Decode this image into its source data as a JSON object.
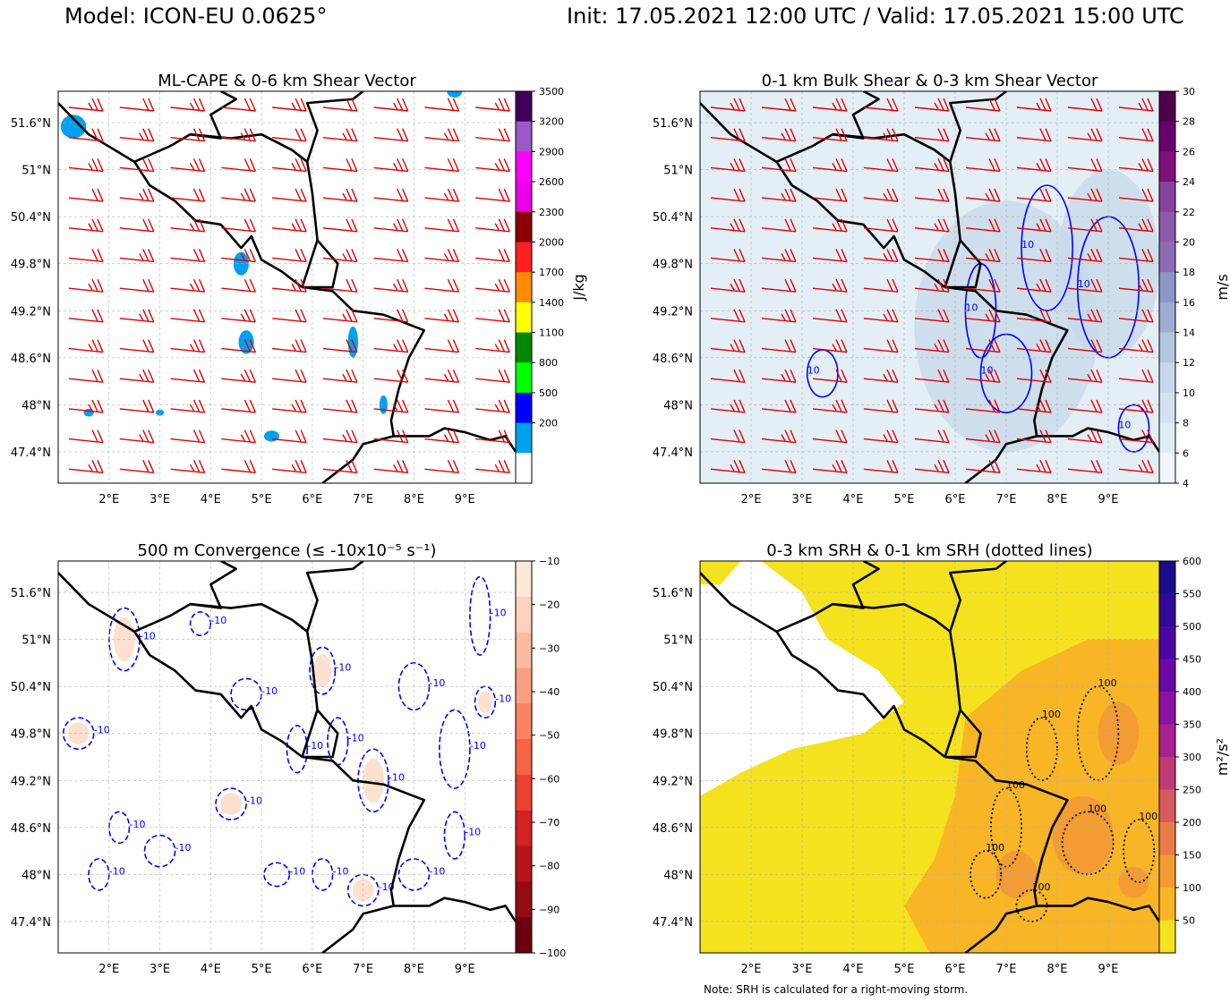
{
  "header": {
    "model": "Model: ICON-EU 0.0625°",
    "timing": "Init: 17.05.2021 12:00 UTC / Valid: 17.05.2021 15:00 UTC"
  },
  "note": "Note: SRH is calculated for a right-moving storm.",
  "colors": {
    "barb": "#e00000",
    "border": "#000000",
    "contour": "#0000ff",
    "grid": "#b0b0b0"
  },
  "chart_data": [
    {
      "type": "heatmap",
      "title": "ML-CAPE & 0-6 km Shear Vector",
      "xticks": [
        "2°E",
        "3°E",
        "4°E",
        "5°E",
        "6°E",
        "7°E",
        "8°E",
        "9°E"
      ],
      "yticks": [
        "51.6°N",
        "51°N",
        "50.4°N",
        "49.8°N",
        "49.2°N",
        "48.6°N",
        "48°N",
        "47.4°N"
      ],
      "xlim": [
        1.0,
        10.0
      ],
      "ylim": [
        47.0,
        52.0
      ],
      "colorbar": {
        "label": "J/kg",
        "ticks": [
          "3500",
          "3200",
          "2900",
          "2600",
          "2300",
          "2000",
          "1700",
          "1400",
          "1100",
          "800",
          "500",
          "200"
        ],
        "colors": [
          "#42005a",
          "#9b59c8",
          "#ff00ff",
          "#e800e8",
          "#8b0000",
          "#ff2020",
          "#ff8c00",
          "#ffff00",
          "#008800",
          "#00ff00",
          "#0000ff",
          "#00a0f0",
          "#ffffff"
        ]
      },
      "fill": "none",
      "overlay": "barbs",
      "barb_rows": 13,
      "barb_cols": 9
    },
    {
      "type": "heatmap",
      "title": "0-1 km Bulk Shear & 0-3 km Shear Vector",
      "xticks": [
        "2°E",
        "3°E",
        "4°E",
        "5°E",
        "6°E",
        "7°E",
        "8°E",
        "9°E"
      ],
      "yticks": [
        "51.6°N",
        "51°N",
        "50.4°N",
        "49.8°N",
        "49.2°N",
        "48.6°N",
        "48°N",
        "47.4°N"
      ],
      "xlim": [
        1.0,
        10.0
      ],
      "ylim": [
        47.0,
        52.0
      ],
      "colorbar": {
        "label": "m/s",
        "ticks": [
          "30",
          "28",
          "26",
          "24",
          "22",
          "20",
          "18",
          "16",
          "14",
          "12",
          "10",
          "8",
          "6",
          "4"
        ],
        "colors": [
          "#4d004b",
          "#67016e",
          "#810f7c",
          "#88419d",
          "#8c5aa8",
          "#8c6bb1",
          "#8c96c6",
          "#9fabd1",
          "#b3c6df",
          "#c6d8ea",
          "#d4e2f0",
          "#e0ecf4",
          "#f0f6fb"
        ]
      },
      "fill": "light-blue",
      "overlay": "barbs",
      "contour_label": "10",
      "barb_rows": 13,
      "barb_cols": 9
    },
    {
      "type": "heatmap",
      "title": "500 m Convergence (≤ -10x10⁻⁵ s⁻¹)",
      "xticks": [
        "2°E",
        "3°E",
        "4°E",
        "5°E",
        "6°E",
        "7°E",
        "8°E",
        "9°E"
      ],
      "yticks": [
        "51.6°N",
        "51°N",
        "50.4°N",
        "49.8°N",
        "49.2°N",
        "48.6°N",
        "48°N",
        "47.4°N"
      ],
      "xlim": [
        1.0,
        10.0
      ],
      "ylim": [
        47.0,
        52.0
      ],
      "colorbar": {
        "label": "",
        "ticks": [
          "−10",
          "−20",
          "−30",
          "−40",
          "−50",
          "−60",
          "−70",
          "−80",
          "−90",
          "−100"
        ],
        "colors": [
          "#fee8d8",
          "#fdd2bc",
          "#fcbba0",
          "#fc9f80",
          "#fb8262",
          "#f66446",
          "#ea4331",
          "#d42121",
          "#b81418",
          "#960b12",
          "#6d0010"
        ]
      },
      "fill": "none",
      "overlay": "contours",
      "contour_label": "-10"
    },
    {
      "type": "heatmap",
      "title": "0-3 km SRH & 0-1 km SRH (dotted lines)",
      "xticks": [
        "2°E",
        "3°E",
        "4°E",
        "5°E",
        "6°E",
        "7°E",
        "8°E",
        "9°E"
      ],
      "yticks": [
        "51.6°N",
        "51°N",
        "50.4°N",
        "49.8°N",
        "49.2°N",
        "48.6°N",
        "48°N",
        "47.4°N"
      ],
      "xlim": [
        1.0,
        10.0
      ],
      "ylim": [
        47.0,
        52.0
      ],
      "colorbar": {
        "label": "m²/s²",
        "ticks": [
          "600",
          "550",
          "500",
          "450",
          "400",
          "350",
          "300",
          "250",
          "200",
          "150",
          "100",
          "50"
        ],
        "colors": [
          "#1a0d8c",
          "#30089a",
          "#4a06a4",
          "#6a08a8",
          "#8a12a4",
          "#a52290",
          "#c03a78",
          "#d65a60",
          "#e87b48",
          "#f29c33",
          "#f8b526",
          "#f5e21e"
        ]
      },
      "fill": "yellow",
      "overlay": "dotted",
      "contour_label": "100"
    }
  ]
}
